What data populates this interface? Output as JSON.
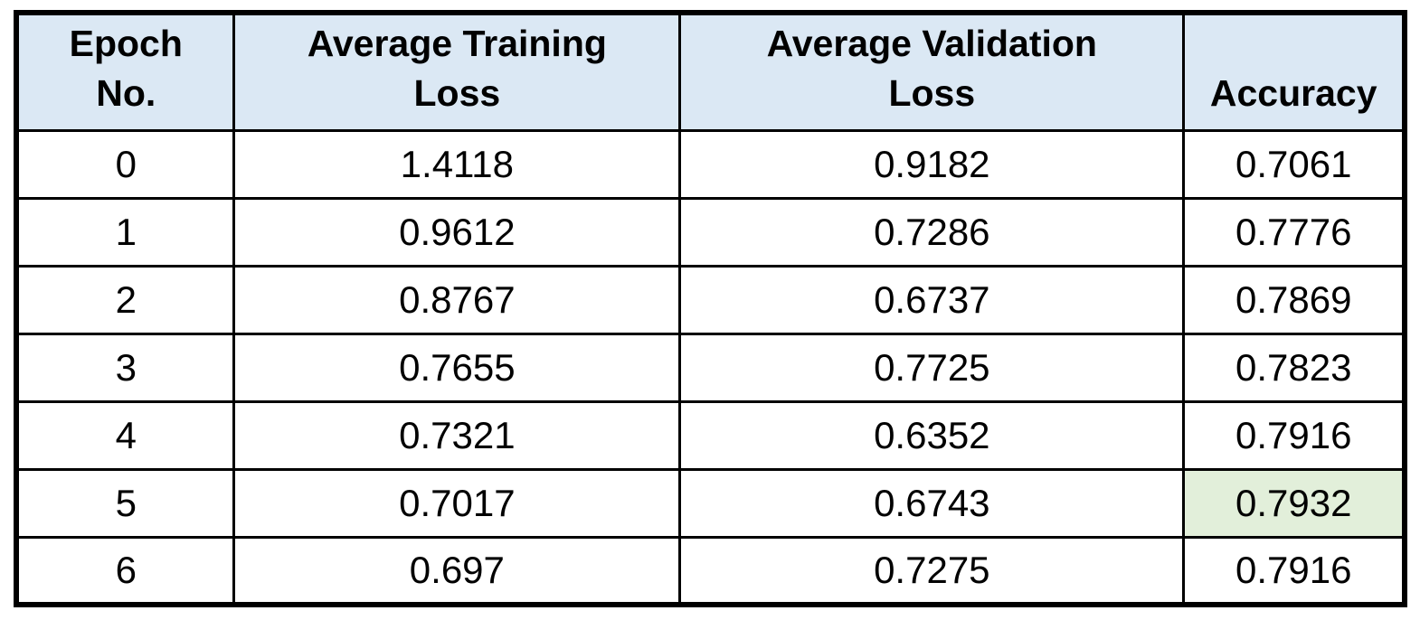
{
  "table": {
    "header": {
      "columns": [
        {
          "name": "epoch",
          "line1": "Epoch",
          "line2": "No."
        },
        {
          "name": "training_loss",
          "line1": "Average Training",
          "line2": "Loss"
        },
        {
          "name": "validation_loss",
          "line1": "Average Validation",
          "line2": "Loss"
        },
        {
          "name": "accuracy",
          "line1": "Accuracy",
          "line2": ""
        }
      ]
    },
    "highlight": {
      "row_index": 5,
      "col_index": 3
    }
  },
  "colors": {
    "page_bg": "#ffffff",
    "header_bg": "#dbe8f4",
    "highlight_bg": "#e2efda",
    "border": "#000000",
    "text": "#000000"
  },
  "chart_data": {
    "type": "table",
    "columns": [
      "Epoch No.",
      "Average Training Loss",
      "Average Validation Loss",
      "Accuracy"
    ],
    "rows": [
      [
        0,
        1.4118,
        0.9182,
        0.7061
      ],
      [
        1,
        0.9612,
        0.7286,
        0.7776
      ],
      [
        2,
        0.8767,
        0.6737,
        0.7869
      ],
      [
        3,
        0.7655,
        0.7725,
        0.7823
      ],
      [
        4,
        0.7321,
        0.6352,
        0.7916
      ],
      [
        5,
        0.7017,
        0.6743,
        0.7932
      ],
      [
        6,
        0.697,
        0.7275,
        0.7916
      ]
    ],
    "highlighted_cell": {
      "row": 5,
      "column": "Accuracy",
      "value": 0.7932,
      "fill_color": "#e2efda"
    },
    "layout": {
      "grid": true,
      "header_fill": "#dbe8f4",
      "text_align": "center"
    }
  }
}
